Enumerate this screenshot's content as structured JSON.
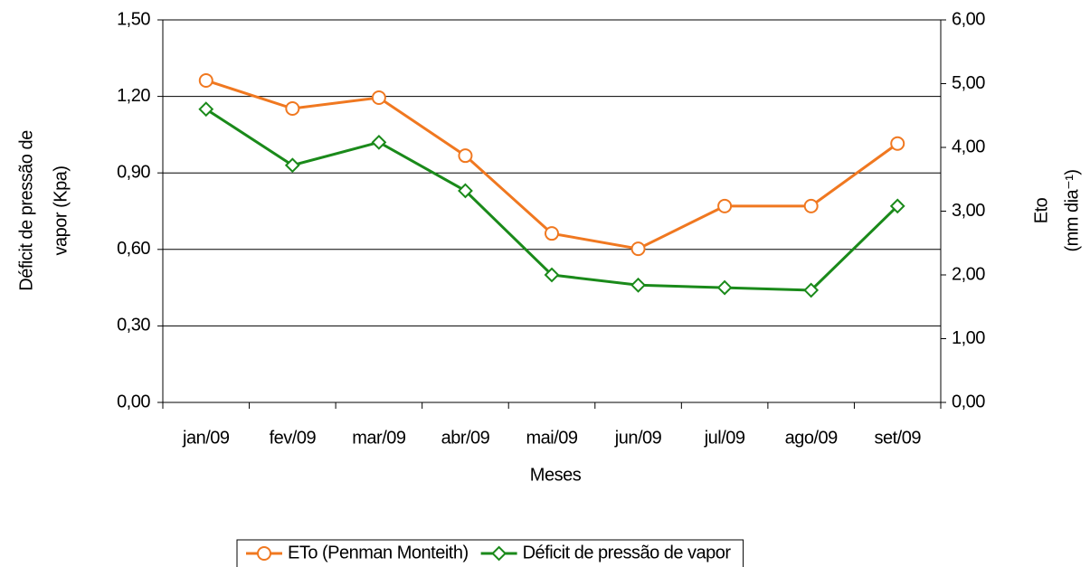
{
  "chart_data": {
    "type": "line",
    "xlabel": "Meses",
    "ylabel": [
      "Déficit de pressão de",
      "vapor (Kpa)"
    ],
    "y2label": [
      "Eto",
      "(mm dia⁻¹)"
    ],
    "categories": [
      "jan/09",
      "fev/09",
      "mar/09",
      "abr/09",
      "mai/09",
      "jun/09",
      "jul/09",
      "ago/09",
      "set/09"
    ],
    "series": [
      {
        "name": "ETo (Penman Monteith)",
        "color": "#f07820",
        "marker": "circle",
        "axis": "y2",
        "values": [
          5.05,
          4.61,
          4.78,
          3.87,
          2.65,
          2.41,
          3.08,
          3.08,
          4.06
        ]
      },
      {
        "name": "Déficit de pressão de vapor",
        "color": "#1a8a1a",
        "marker": "diamond",
        "values": [
          1.15,
          0.93,
          1.02,
          0.83,
          0.5,
          0.46,
          0.45,
          0.44,
          0.77
        ]
      }
    ],
    "ylim": [
      0,
      1.5
    ],
    "yticks": [
      {
        "value": 0,
        "label": "0,00"
      },
      {
        "value": 0.3,
        "label": "0,30"
      },
      {
        "value": 0.6,
        "label": "0,60"
      },
      {
        "value": 0.9,
        "label": "0,90"
      },
      {
        "value": 1.2,
        "label": "1,20"
      },
      {
        "value": 1.5,
        "label": "1,50"
      }
    ],
    "y2lim": [
      0,
      6
    ],
    "y2ticks": [
      {
        "value": 0,
        "label": "0,00"
      },
      {
        "value": 1,
        "label": "1,00"
      },
      {
        "value": 2,
        "label": "2,00"
      },
      {
        "value": 3,
        "label": "3,00"
      },
      {
        "value": 4,
        "label": "4,00"
      },
      {
        "value": 5,
        "label": "5,00"
      },
      {
        "value": 6,
        "label": "6,00"
      }
    ],
    "grid": true,
    "legend": "bottom"
  }
}
